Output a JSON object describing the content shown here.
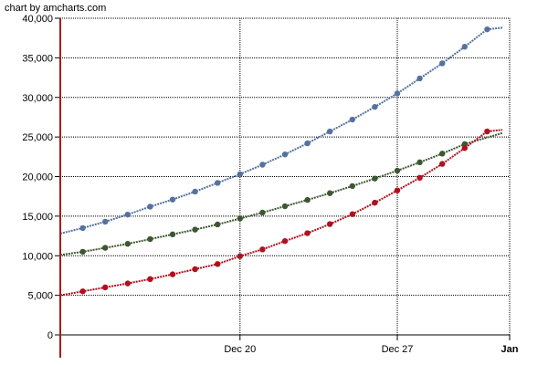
{
  "credit": "chart by amcharts.com",
  "chart_data": {
    "type": "line",
    "title": "",
    "xlabel": "",
    "ylabel": "",
    "x_range": [
      "2014-12-12",
      "2015-01-01"
    ],
    "ylim": [
      0,
      40000
    ],
    "y_ticks": [
      0,
      5000,
      10000,
      15000,
      20000,
      25000,
      30000,
      35000,
      40000
    ],
    "y_tick_labels": [
      "0",
      "5,000",
      "10,000",
      "15,000",
      "20,000",
      "25,000",
      "30,000",
      "35,000",
      "40,000"
    ],
    "x_ticks": [
      {
        "date": "2014-12-20",
        "label": "Dec 20",
        "bold": false
      },
      {
        "date": "2014-12-27",
        "label": "Dec 27",
        "bold": false
      },
      {
        "date": "2015-01-01",
        "label": "Jan",
        "bold": true
      }
    ],
    "grid": true,
    "grid_style": "dotted",
    "dates": [
      "2014-12-12",
      "2014-12-13",
      "2014-12-14",
      "2014-12-15",
      "2014-12-16",
      "2014-12-17",
      "2014-12-18",
      "2014-12-19",
      "2014-12-20",
      "2014-12-21",
      "2014-12-22",
      "2014-12-23",
      "2014-12-24",
      "2014-12-25",
      "2014-12-26",
      "2014-12-27",
      "2014-12-28",
      "2014-12-29",
      "2014-12-30",
      "2014-12-31",
      "2015-01-01"
    ],
    "series": [
      {
        "color": "#55719e",
        "values": [
          null,
          13500,
          14300,
          15200,
          16200,
          17100,
          18100,
          19200,
          20300,
          21500,
          22800,
          24200,
          25700,
          27200,
          28800,
          30500,
          32400,
          34300,
          36400,
          38600,
          null
        ]
      },
      {
        "color": "#3d5730",
        "values": [
          null,
          10500,
          11000,
          11500,
          12100,
          12700,
          13300,
          13950,
          14700,
          15450,
          16250,
          17050,
          17900,
          18800,
          19750,
          20750,
          21800,
          22900,
          24100,
          null,
          null
        ]
      },
      {
        "color": "#b0101e",
        "values": [
          null,
          5500,
          6000,
          6500,
          7050,
          7650,
          8300,
          8950,
          9950,
          10800,
          11850,
          12850,
          14000,
          15250,
          16700,
          18250,
          19850,
          21600,
          23600,
          25700,
          null
        ]
      }
    ],
    "line_start_values": [
      12800,
      10100,
      5000
    ],
    "line_end_values": [
      38800,
      25500,
      25900
    ],
    "value_axis_color": "#aa1a1a"
  }
}
